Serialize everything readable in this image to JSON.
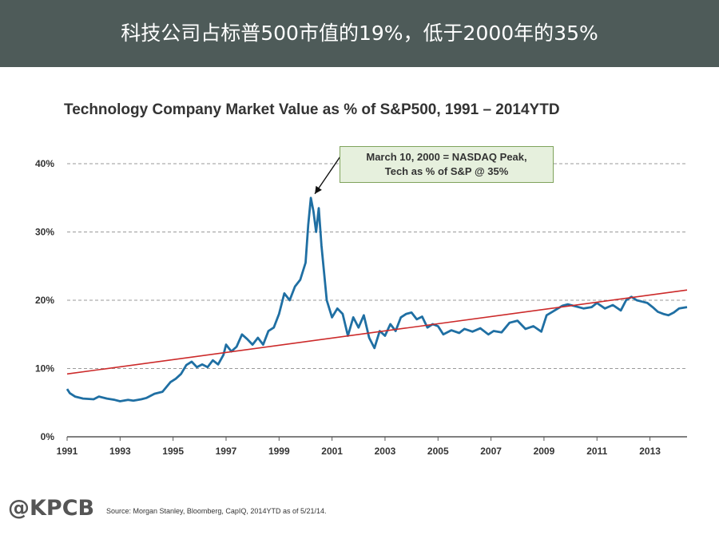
{
  "header": {
    "title": "科技公司占标普500市值的19%，低于2000年的35%"
  },
  "footer": {
    "logo": "@KPCB",
    "source": "Source: Morgan Stanley, Bloomberg, CapIQ, 2014YTD as of 5/21/14."
  },
  "colors": {
    "banner": "#4e5b59",
    "series": "#1f6fa3",
    "trend": "#cc2a2a",
    "annotation_fill": "#e6f0dd",
    "annotation_border": "#7fa35c"
  },
  "chart_data": {
    "type": "line",
    "title": "Technology Company Market Value as % of S&P500, 1991 – 2014YTD",
    "xlabel": "",
    "ylabel": "",
    "xlim": [
      1991,
      2014.4
    ],
    "ylim": [
      0,
      40
    ],
    "x_ticks": [
      "1991",
      "1993",
      "1995",
      "1997",
      "1999",
      "2001",
      "2003",
      "2005",
      "2007",
      "2009",
      "2011",
      "2013"
    ],
    "y_ticks": [
      "0%",
      "10%",
      "20%",
      "30%",
      "40%"
    ],
    "grid": "horizontal-dashed",
    "legend": "none",
    "series": [
      {
        "x": [
          1991.0,
          1991.1,
          1991.3,
          1991.6,
          1992.0,
          1992.2,
          1992.5,
          1992.8,
          1993.0,
          1993.3,
          1993.5,
          1993.8,
          1994.0,
          1994.3,
          1994.6,
          1994.9,
          1995.1,
          1995.3,
          1995.5,
          1995.7,
          1995.9,
          1996.1,
          1996.3,
          1996.5,
          1996.7,
          1996.9,
          1997.0,
          1997.2,
          1997.4,
          1997.6,
          1997.8,
          1998.0,
          1998.2,
          1998.4,
          1998.6,
          1998.8,
          1999.0,
          1999.2,
          1999.4,
          1999.6,
          1999.8,
          2000.0,
          2000.1,
          2000.2,
          2000.3,
          2000.4,
          2000.5,
          2000.6,
          2000.7,
          2000.8,
          2001.0,
          2001.2,
          2001.4,
          2001.6,
          2001.8,
          2002.0,
          2002.2,
          2002.4,
          2002.6,
          2002.8,
          2003.0,
          2003.2,
          2003.4,
          2003.6,
          2003.8,
          2004.0,
          2004.2,
          2004.4,
          2004.6,
          2004.8,
          2005.0,
          2005.2,
          2005.5,
          2005.8,
          2006.0,
          2006.3,
          2006.6,
          2006.9,
          2007.1,
          2007.4,
          2007.7,
          2008.0,
          2008.3,
          2008.6,
          2008.9,
          2009.1,
          2009.4,
          2009.7,
          2009.9,
          2010.2,
          2010.5,
          2010.8,
          2011.0,
          2011.3,
          2011.6,
          2011.9,
          2012.1,
          2012.3,
          2012.5,
          2012.7,
          2012.9,
          2013.1,
          2013.3,
          2013.5,
          2013.7,
          2013.9,
          2014.1,
          2014.4
        ],
        "values": [
          7.0,
          6.4,
          5.9,
          5.6,
          5.5,
          5.9,
          5.6,
          5.4,
          5.2,
          5.4,
          5.3,
          5.5,
          5.7,
          6.3,
          6.6,
          8.0,
          8.5,
          9.2,
          10.5,
          11.0,
          10.2,
          10.6,
          10.2,
          11.2,
          10.6,
          12.0,
          13.5,
          12.5,
          13.2,
          15.0,
          14.3,
          13.5,
          14.5,
          13.5,
          15.5,
          16.0,
          18.0,
          21.0,
          20.0,
          22.0,
          23.0,
          25.5,
          31.0,
          35.0,
          33.0,
          30.0,
          33.5,
          28.0,
          24.0,
          20.0,
          17.5,
          18.8,
          18.0,
          14.8,
          17.5,
          16.0,
          17.8,
          14.5,
          13.0,
          15.5,
          14.8,
          16.5,
          15.5,
          17.5,
          18.0,
          18.2,
          17.2,
          17.6,
          16.0,
          16.5,
          16.2,
          15.0,
          15.6,
          15.2,
          15.8,
          15.4,
          15.9,
          15.0,
          15.5,
          15.3,
          16.7,
          17.0,
          15.8,
          16.2,
          15.4,
          17.8,
          18.5,
          19.2,
          19.4,
          19.1,
          18.8,
          19.0,
          19.6,
          18.8,
          19.3,
          18.5,
          20.0,
          20.5,
          20.0,
          19.8,
          19.6,
          19.0,
          18.3,
          18.0,
          17.8,
          18.2,
          18.8,
          19.0
        ]
      },
      {
        "x": [
          1991.0,
          2014.4
        ],
        "values": [
          9.2,
          21.5
        ]
      }
    ],
    "annotations": [
      {
        "line1": "March 10, 2000 = NASDAQ Peak,",
        "line2": "Tech as %  of S&P @ 35%",
        "x": 2000.2,
        "y": 35
      }
    ]
  }
}
